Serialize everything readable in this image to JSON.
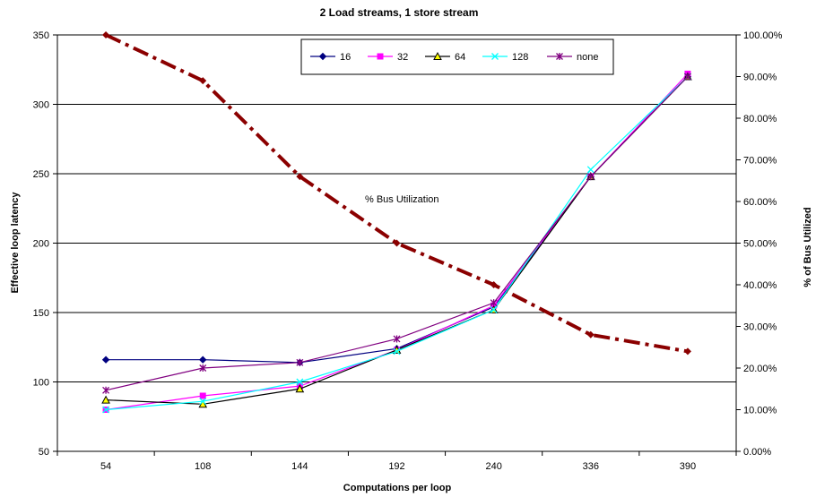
{
  "chart_data": {
    "type": "line",
    "title": "2 Load streams, 1 store stream",
    "xlabel": "Computations per loop",
    "ylabel": "Effective loop latency",
    "y2label": "% of Bus Utilized",
    "categories": [
      "54",
      "108",
      "144",
      "192",
      "240",
      "336",
      "390"
    ],
    "ylim": [
      50,
      350
    ],
    "yticks": [
      50,
      100,
      150,
      200,
      250,
      300,
      350
    ],
    "y2lim": [
      0,
      100
    ],
    "y2ticks": [
      "0.00%",
      "10.00%",
      "20.00%",
      "30.00%",
      "40.00%",
      "50.00%",
      "60.00%",
      "70.00%",
      "80.00%",
      "90.00%",
      "100.00%"
    ],
    "grid": "horizontal",
    "legend_position": "top-center",
    "series": [
      {
        "name": "16",
        "axis": "left",
        "color": "#000080",
        "marker": "diamond",
        "values": [
          116,
          116,
          114,
          124,
          154,
          248,
          320
        ]
      },
      {
        "name": "32",
        "axis": "left",
        "color": "#ff00ff",
        "marker": "square",
        "values": [
          80,
          90,
          97,
          123,
          155,
          248,
          322
        ]
      },
      {
        "name": "64",
        "axis": "left",
        "color": "#000000",
        "marker": "triangle",
        "values": [
          87,
          84,
          95,
          123,
          152,
          248,
          320
        ]
      },
      {
        "name": "128",
        "axis": "left",
        "color": "#00ffff",
        "marker": "x",
        "values": [
          80,
          86,
          100,
          122,
          152,
          253,
          320
        ]
      },
      {
        "name": "none",
        "axis": "left",
        "color": "#800080",
        "marker": "star",
        "values": [
          94,
          110,
          114,
          131,
          157,
          248,
          320
        ]
      }
    ],
    "bus_utilization": {
      "axis": "right",
      "color": "#8b0000",
      "style": "dash-dot",
      "values_percent": [
        100,
        89,
        66,
        50,
        40,
        28,
        24
      ]
    },
    "annotations": [
      "% Bus Utilization"
    ]
  }
}
